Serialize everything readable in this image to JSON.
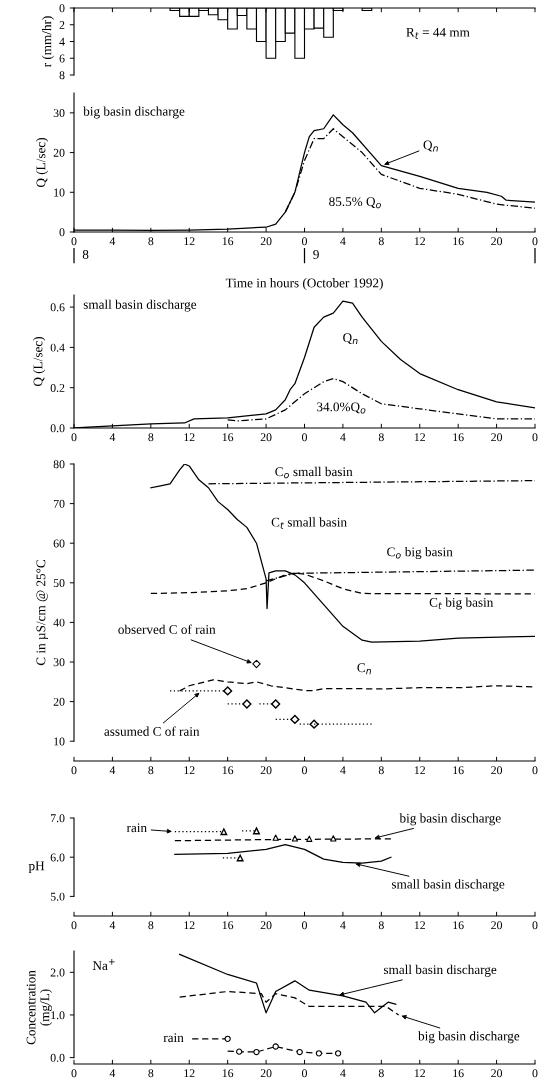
{
  "chart_data": [
    {
      "type": "bar",
      "ylabel": "r (mm/hr)",
      "xlim": [
        "1992-10-08T00:00",
        "1992-10-10T00:00"
      ],
      "ylim": [
        8,
        0
      ],
      "yticks": [
        0,
        2,
        4,
        6,
        8
      ],
      "tick_labels": "y",
      "xticks": [
        {
          "value": "1992-10-08T00:00",
          "label": null
        },
        {
          "value": "1992-10-08T04:00",
          "label": null
        },
        {
          "value": "1992-10-08T08:00",
          "label": null
        },
        {
          "value": "1992-10-08T12:00",
          "label": null
        },
        {
          "value": "1992-10-08T16:00",
          "label": null
        },
        {
          "value": "1992-10-08T20:00",
          "label": null
        },
        {
          "value": "1992-10-09T00:00",
          "label": null
        },
        {
          "value": "1992-10-09T04:00",
          "label": null
        },
        {
          "value": "1992-10-09T08:00",
          "label": null
        },
        {
          "value": "1992-10-09T12:00",
          "label": null
        },
        {
          "value": "1992-10-09T16:00",
          "label": null
        },
        {
          "value": "1992-10-09T20:00",
          "label": null
        },
        {
          "value": "1992-10-10T00:00",
          "label": null
        }
      ],
      "annotations": [
        "R$_{t}$ = 44 mm"
      ],
      "series": [
        {
          "color": "#ffffff",
          "x": [
            "1992-10-08T10:30",
            "1992-10-08T11:30",
            "1992-10-08T12:30",
            "1992-10-08T13:30",
            "1992-10-08T14:30",
            "1992-10-08T15:30",
            "1992-10-08T16:30",
            "1992-10-08T17:30",
            "1992-10-08T18:30",
            "1992-10-08T19:30",
            "1992-10-08T20:30",
            "1992-10-08T21:30",
            "1992-10-08T22:30",
            "1992-10-08T23:30",
            "1992-10-09T00:30",
            "1992-10-09T01:30",
            "1992-10-09T02:30",
            "1992-10-09T03:30",
            "1992-10-09T06:30"
          ],
          "values": [
            0.3,
            1,
            1,
            0.3,
            0.8,
            1.4,
            2.5,
            0.9,
            2.5,
            4,
            6,
            4,
            3,
            6,
            2.5,
            2.4,
            3.5,
            0.3,
            0.3
          ]
        }
      ]
    },
    {
      "type": "line",
      "ylabel": "Q (L/sec)",
      "xlabel": "Time in hours (October 1992)",
      "xlim": [
        "1992-10-08T00:00",
        "1992-10-10T00:00"
      ],
      "ylim": [
        0,
        35
      ],
      "yticks": [
        0,
        10,
        20,
        30
      ],
      "xticks": [
        {
          "value": "1992-10-08T00:00",
          "label": "0"
        },
        {
          "value": "1992-10-08T04:00",
          "label": "4"
        },
        {
          "value": "1992-10-08T08:00",
          "label": "8"
        },
        {
          "value": "1992-10-08T12:00",
          "label": "12"
        },
        {
          "value": "1992-10-08T16:00",
          "label": "16"
        },
        {
          "value": "1992-10-08T20:00",
          "label": "20"
        },
        {
          "value": "1992-10-09T00:00",
          "label": "0"
        },
        {
          "value": "1992-10-09T04:00",
          "label": "4"
        },
        {
          "value": "1992-10-09T08:00",
          "label": "8"
        },
        {
          "value": "1992-10-09T12:00",
          "label": "12"
        },
        {
          "value": "1992-10-09T16:00",
          "label": "16"
        },
        {
          "value": "1992-10-09T20:00",
          "label": "20"
        },
        {
          "value": "1992-10-10T00:00",
          "label": "0"
        }
      ],
      "annotations": [
        "big basin discharge",
        {
          "text": "Q$_{n}$",
          "x": "1992-10-09T08:00",
          "y": 16.7
        },
        "85.5% Q$_{o}$",
        "8",
        "9"
      ],
      "series": [
        {
          "color": "#000000",
          "line_style": "solid",
          "x": [
            "1992-10-08T00:00",
            "1992-10-08T04:00",
            "1992-10-08T08:00",
            "1992-10-08T12:00",
            "1992-10-08T16:00",
            "1992-10-08T18:00",
            "1992-10-08T20:00",
            "1992-10-08T21:00",
            "1992-10-08T22:00",
            "1992-10-08T23:00",
            "1992-10-08T23:30",
            "1992-10-09T00:00",
            "1992-10-09T00:30",
            "1992-10-09T01:00",
            "1992-10-09T02:00",
            "1992-10-09T03:00",
            "1992-10-09T04:00",
            "1992-10-09T05:00",
            "1992-10-09T08:00",
            "1992-10-09T12:00",
            "1992-10-09T14:00",
            "1992-10-09T16:00",
            "1992-10-09T19:00",
            "1992-10-09T20:30",
            "1992-10-09T21:00",
            "1992-10-10T00:00"
          ],
          "values": [
            0.5,
            0.5,
            0.4,
            0.5,
            0.7,
            1,
            1.2,
            2,
            5,
            10,
            15,
            20,
            24,
            25.5,
            26,
            29.5,
            27,
            25,
            16.7,
            14,
            12.5,
            11,
            10,
            9,
            8,
            7.5
          ]
        },
        {
          "color": "#000000",
          "line_style": "dashdot",
          "x": [
            "1992-10-08T22:00",
            "1992-10-08T23:00",
            "1992-10-09T00:00",
            "1992-10-09T01:00",
            "1992-10-09T02:00",
            "1992-10-09T03:00",
            "1992-10-09T04:00",
            "1992-10-09T06:00",
            "1992-10-09T08:00",
            "1992-10-09T12:00",
            "1992-10-09T16:00",
            "1992-10-09T20:00",
            "1992-10-10T00:00"
          ],
          "values": [
            5,
            10,
            18,
            23.5,
            23.5,
            26,
            24,
            20,
            14.5,
            11,
            9.5,
            7,
            6
          ]
        }
      ]
    },
    {
      "type": "line",
      "ylabel": "Q (L/sec)",
      "xlim": [
        "1992-10-08T00:00",
        "1992-10-10T00:00"
      ],
      "ylim": [
        0,
        0.66
      ],
      "yticks": [
        {
          "value": 0,
          "label": "0.0"
        },
        {
          "value": 0.2,
          "label": "0.2"
        },
        {
          "value": 0.4,
          "label": "0.4"
        },
        {
          "value": 0.6,
          "label": "0.6"
        }
      ],
      "xticks": [
        {
          "value": "1992-10-08T00:00",
          "label": "0"
        },
        {
          "value": "1992-10-08T04:00",
          "label": "4"
        },
        {
          "value": "1992-10-08T08:00",
          "label": "8"
        },
        {
          "value": "1992-10-08T12:00",
          "label": "12"
        },
        {
          "value": "1992-10-08T16:00",
          "label": "16"
        },
        {
          "value": "1992-10-08T20:00",
          "label": "20"
        },
        {
          "value": "1992-10-09T00:00",
          "label": "0"
        },
        {
          "value": "1992-10-09T04:00",
          "label": "4"
        },
        {
          "value": "1992-10-09T08:00",
          "label": "8"
        },
        {
          "value": "1992-10-09T12:00",
          "label": "12"
        },
        {
          "value": "1992-10-09T16:00",
          "label": "16"
        },
        {
          "value": "1992-10-09T20:00",
          "label": "20"
        },
        {
          "value": "1992-10-10T00:00",
          "label": "0"
        }
      ],
      "annotations": [
        "small basin discharge",
        "Q$_{n}$",
        "34.0%Q$_{o}$"
      ],
      "series": [
        {
          "color": "#000000",
          "line_style": "solid",
          "x": [
            "1992-10-08T00:00",
            "1992-10-08T04:00",
            "1992-10-08T08:00",
            "1992-10-08T11:30",
            "1992-10-08T12:30",
            "1992-10-08T16:00",
            "1992-10-08T19:00",
            "1992-10-08T20:00",
            "1992-10-08T21:00",
            "1992-10-08T22:00",
            "1992-10-08T22:30",
            "1992-10-08T23:00",
            "1992-10-09T00:00",
            "1992-10-09T01:00",
            "1992-10-09T02:00",
            "1992-10-09T03:00",
            "1992-10-09T03:30",
            "1992-10-09T04:00",
            "1992-10-09T05:00",
            "1992-10-09T06:00",
            "1992-10-09T08:00",
            "1992-10-09T10:00",
            "1992-10-09T12:00",
            "1992-10-09T16:00",
            "1992-10-09T20:00",
            "1992-10-10T00:00"
          ],
          "values": [
            0,
            0.01,
            0.02,
            0.025,
            0.045,
            0.05,
            0.065,
            0.07,
            0.09,
            0.14,
            0.19,
            0.22,
            0.35,
            0.5,
            0.55,
            0.57,
            0.6,
            0.63,
            0.62,
            0.55,
            0.43,
            0.34,
            0.27,
            0.19,
            0.13,
            0.1
          ]
        },
        {
          "color": "#000000",
          "line_style": "dashdot",
          "x": [
            "1992-10-08T16:00",
            "1992-10-08T17:00",
            "1992-10-08T20:00",
            "1992-10-08T22:00",
            "1992-10-09T00:00",
            "1992-10-09T02:00",
            "1992-10-09T03:00",
            "1992-10-09T04:00",
            "1992-10-09T06:00",
            "1992-10-09T08:00",
            "1992-10-09T12:00",
            "1992-10-09T16:00",
            "1992-10-09T20:00",
            "1992-10-10T00:00"
          ],
          "values": [
            0.04,
            0.035,
            0.045,
            0.09,
            0.17,
            0.23,
            0.245,
            0.23,
            0.17,
            0.12,
            0.095,
            0.07,
            0.045,
            0.045
          ]
        }
      ]
    },
    {
      "type": "line",
      "ylabel": "C in µS/cm @ 25°C",
      "xlim": [
        "1992-10-08T00:00",
        "1992-10-10T00:00"
      ],
      "ylim": [
        5,
        80
      ],
      "yticks": [
        10,
        20,
        30,
        40,
        50,
        60,
        70,
        80
      ],
      "xticks": [
        {
          "value": "1992-10-08T00:00",
          "label": "0"
        },
        {
          "value": "1992-10-08T04:00",
          "label": "4"
        },
        {
          "value": "1992-10-08T08:00",
          "label": "8"
        },
        {
          "value": "1992-10-08T12:00",
          "label": "12"
        },
        {
          "value": "1992-10-08T16:00",
          "label": "16"
        },
        {
          "value": "1992-10-08T20:00",
          "label": "20"
        },
        {
          "value": "1992-10-09T00:00",
          "label": "0"
        },
        {
          "value": "1992-10-09T04:00",
          "label": "4"
        },
        {
          "value": "1992-10-09T08:00",
          "label": "8"
        },
        {
          "value": "1992-10-09T12:00",
          "label": "12"
        },
        {
          "value": "1992-10-09T16:00",
          "label": "16"
        },
        {
          "value": "1992-10-09T20:00",
          "label": "20"
        },
        {
          "value": "1992-10-10T00:00",
          "label": "0"
        }
      ],
      "annotations": [
        "C$_{o}$ small basin",
        "C$_{t}$ small basin",
        "C$_{o}$ big basin",
        "C$_{t}$ big basin",
        "C$_{n}$",
        {
          "text": "observed C of rain",
          "x": "1992-10-08T18:48",
          "y": 29.5
        },
        {
          "text": "assumed C of rain",
          "x": "1992-10-08T13:18",
          "y": 22.7
        }
      ],
      "series": [
        {
          "color": "#000000",
          "line_style": "solid",
          "x": [
            "1992-10-08T08:00",
            "1992-10-08T09:00",
            "1992-10-08T10:00",
            "1992-10-08T11:00",
            "1992-10-08T11:30",
            "1992-10-08T12:00",
            "1992-10-08T13:00",
            "1992-10-08T14:00",
            "1992-10-08T15:00",
            "1992-10-08T16:00",
            "1992-10-08T17:00",
            "1992-10-08T18:00",
            "1992-10-08T19:00",
            "1992-10-08T20:00",
            "1992-10-08T20:06",
            "1992-10-08T20:18",
            "1992-10-08T21:00",
            "1992-10-08T22:00",
            "1992-10-08T23:00",
            "1992-10-09T00:00",
            "1992-10-09T02:00",
            "1992-10-09T04:00",
            "1992-10-09T06:00",
            "1992-10-09T07:00",
            "1992-10-09T12:00",
            "1992-10-09T16:00",
            "1992-10-10T00:00"
          ],
          "values": [
            74,
            74.5,
            75,
            78.5,
            80,
            79.5,
            76,
            74,
            70.5,
            68.5,
            66,
            64,
            60,
            51,
            43.5,
            52.5,
            53,
            53,
            52,
            50,
            44.5,
            39,
            35.5,
            35,
            35.3,
            36,
            36.5
          ]
        },
        {
          "color": "#000000",
          "line_style": "dashdot",
          "x": [
            "1992-10-08T14:00",
            "1992-10-10T00:00"
          ],
          "values": [
            75,
            75.8
          ]
        },
        {
          "color": "#000000",
          "line_style": "dashed",
          "x": [
            "1992-10-08T08:00",
            "1992-10-08T12:00",
            "1992-10-08T16:00",
            "1992-10-08T18:00",
            "1992-10-08T20:00",
            "1992-10-08T22:00",
            "1992-10-08T23:00",
            "1992-10-09T00:00",
            "1992-10-09T02:00",
            "1992-10-09T04:00",
            "1992-10-09T06:00",
            "1992-10-10T00:00"
          ],
          "values": [
            47.3,
            47.5,
            48,
            48.5,
            50,
            52,
            52.5,
            52.2,
            50.5,
            48.5,
            47.3,
            47.2
          ]
        },
        {
          "color": "#000000",
          "line_style": "dashdot",
          "x": [
            "1992-10-08T20:00",
            "1992-10-08T23:00",
            "1992-10-10T00:00"
          ],
          "values": [
            50.5,
            52.4,
            53.2
          ]
        },
        {
          "color": "#000000",
          "line_style": "dashed",
          "x": [
            "1992-10-08T11:00",
            "1992-10-08T12:00",
            "1992-10-08T14:30",
            "1992-10-08T16:00",
            "1992-10-08T18:00",
            "1992-10-08T19:00",
            "1992-10-08T20:30",
            "1992-10-08T22:00",
            "1992-10-09T00:00",
            "1992-10-09T01:00",
            "1992-10-09T02:00",
            "1992-10-09T04:00",
            "1992-10-09T08:00",
            "1992-10-09T12:00",
            "1992-10-09T16:00",
            "1992-10-09T20:00",
            "1992-10-10T00:00"
          ],
          "values": [
            22.7,
            24,
            25.5,
            25,
            24.5,
            25,
            24,
            23.5,
            22.8,
            22.8,
            23.3,
            23.3,
            23.2,
            23.5,
            23.5,
            24,
            23.7
          ]
        },
        {
          "type": "scatter",
          "color": "#000000",
          "marker": "diamond",
          "x": [
            "1992-10-08T19:00"
          ],
          "values": [
            29.5
          ]
        },
        {
          "color": "#000000",
          "line_style": "dotted",
          "marker": "diamond",
          "x": [
            "1992-10-08T10:00",
            "1992-10-08T16:00"
          ],
          "values": [
            22.7,
            22.7
          ]
        },
        {
          "color": "#000000",
          "line_style": "dotted",
          "marker": "diamond",
          "x": [
            "1992-10-08T16:00",
            "1992-10-08T18:00"
          ],
          "values": [
            19.4,
            19.4
          ]
        },
        {
          "color": "#000000",
          "line_style": "dotted",
          "marker": "diamond",
          "x": [
            "1992-10-08T19:18",
            "1992-10-08T21:00"
          ],
          "values": [
            19.4,
            19.4
          ]
        },
        {
          "color": "#000000",
          "line_style": "dotted",
          "marker": "diamond",
          "x": [
            "1992-10-08T21:00",
            "1992-10-08T23:00"
          ],
          "values": [
            15.5,
            15.5
          ]
        },
        {
          "color": "#000000",
          "line_style": "dotted",
          "marker": "diamond",
          "x": [
            "1992-10-08T23:30",
            "1992-10-09T01:00"
          ],
          "values": [
            14.3,
            14.3
          ]
        },
        {
          "color": "#000000",
          "line_style": "dotted",
          "x": [
            "1992-10-09T01:00",
            "1992-10-09T07:00"
          ],
          "values": [
            14.3,
            14.3
          ]
        }
      ]
    },
    {
      "type": "line",
      "ylabel": "pH",
      "xlim": [
        "1992-10-08T00:00",
        "1992-10-10T00:00"
      ],
      "ylim": [
        4.5,
        7.0
      ],
      "yticks": [
        {
          "value": 5,
          "label": "5.0"
        },
        {
          "value": 6,
          "label": "6.0"
        },
        {
          "value": 7,
          "label": "7.0"
        }
      ],
      "xticks": [
        {
          "value": "1992-10-08T00:00",
          "label": "0"
        },
        {
          "value": "1992-10-08T04:00",
          "label": "4"
        },
        {
          "value": "1992-10-08T08:00",
          "label": "8"
        },
        {
          "value": "1992-10-08T12:00",
          "label": "12"
        },
        {
          "value": "1992-10-08T16:00",
          "label": "16"
        },
        {
          "value": "1992-10-08T20:00",
          "label": "20"
        },
        {
          "value": "1992-10-09T00:00",
          "label": "0"
        },
        {
          "value": "1992-10-09T04:00",
          "label": "4"
        },
        {
          "value": "1992-10-09T08:00",
          "label": "8"
        },
        {
          "value": "1992-10-09T12:00",
          "label": "12"
        },
        {
          "value": "1992-10-09T16:00",
          "label": "16"
        },
        {
          "value": "1992-10-09T20:00",
          "label": "20"
        },
        {
          "value": "1992-10-10T00:00",
          "label": "0"
        }
      ],
      "annotations": [
        {
          "text": "rain",
          "x": "1992-10-08T10:30",
          "y": 6.65
        },
        {
          "text": "big basin discharge",
          "x": "1992-10-09T07:00",
          "y": 6.47
        },
        {
          "text": "small basin discharge",
          "x": "1992-10-09T05:00",
          "y": 5.85
        }
      ],
      "series": [
        {
          "color": "#000000",
          "line_style": "solid",
          "x": [
            "1992-10-08T10:30",
            "1992-10-08T16:00",
            "1992-10-08T20:00",
            "1992-10-08T22:00",
            "1992-10-09T00:00",
            "1992-10-09T02:00",
            "1992-10-09T04:00",
            "1992-10-09T06:00",
            "1992-10-09T08:00",
            "1992-10-09T09:00"
          ],
          "values": [
            6.07,
            6.1,
            6.2,
            6.32,
            6.2,
            5.95,
            5.87,
            5.85,
            5.9,
            6.0
          ]
        },
        {
          "color": "#000000",
          "line_style": "dashed",
          "x": [
            "1992-10-08T10:30",
            "1992-10-08T20:00",
            "1992-10-09T09:00"
          ],
          "values": [
            6.42,
            6.45,
            6.47
          ]
        },
        {
          "color": "#000000",
          "line_style": "dotted",
          "marker": "triangle",
          "x": [
            "1992-10-08T10:30",
            "1992-10-08T15:36"
          ],
          "values": [
            6.65,
            6.65
          ]
        },
        {
          "color": "#000000",
          "line_style": "dotted",
          "marker": "triangle",
          "x": [
            "1992-10-08T17:30",
            "1992-10-08T19:00"
          ],
          "values": [
            6.67,
            6.67
          ]
        },
        {
          "color": "#000000",
          "line_style": "dotted",
          "marker": "triangle",
          "x": [
            "1992-10-08T15:30",
            "1992-10-08T17:18"
          ],
          "values": [
            5.98,
            5.98
          ]
        },
        {
          "type": "scatter",
          "color": "#000000",
          "marker": "triangle",
          "x": [
            "1992-10-08T21:00",
            "1992-10-08T23:00",
            "1992-10-09T00:30",
            "1992-10-09T03:00"
          ],
          "values": [
            6.5,
            6.48,
            6.47,
            6.48
          ]
        }
      ]
    },
    {
      "type": "line",
      "ylabel": "Concentration\n(mg/L)",
      "xlim": [
        "1992-10-08T00:00",
        "1992-10-10T00:00"
      ],
      "ylim": [
        -0.15,
        2.5
      ],
      "yticks": [
        {
          "value": 0,
          "label": "0.0"
        },
        {
          "value": 1,
          "label": "1.0"
        },
        {
          "value": 2,
          "label": "2.0"
        }
      ],
      "xticks": [
        {
          "value": "1992-10-08T00:00",
          "label": "0"
        },
        {
          "value": "1992-10-08T04:00",
          "label": "4"
        },
        {
          "value": "1992-10-08T08:00",
          "label": "8"
        },
        {
          "value": "1992-10-08T12:00",
          "label": "12"
        },
        {
          "value": "1992-10-08T16:00",
          "label": "16"
        },
        {
          "value": "1992-10-08T20:00",
          "label": "20"
        },
        {
          "value": "1992-10-09T00:00",
          "label": "0"
        },
        {
          "value": "1992-10-09T04:00",
          "label": "4"
        },
        {
          "value": "1992-10-09T08:00",
          "label": "8"
        },
        {
          "value": "1992-10-09T12:00",
          "label": "12"
        },
        {
          "value": "1992-10-09T16:00",
          "label": "16"
        },
        {
          "value": "1992-10-09T20:00",
          "label": "20"
        },
        {
          "value": "1992-10-10T00:00",
          "label": "0"
        }
      ],
      "annotations": [
        "Na$^{+}$",
        {
          "text": "rain",
          "x": "1992-10-08T12:18",
          "y": 0.44
        },
        {
          "text": "small basin discharge",
          "x": "1992-10-09T03:18",
          "y": 1.45
        },
        {
          "text": "big basin discharge",
          "x": "1992-10-09T09:48",
          "y": 1.0
        }
      ],
      "series": [
        {
          "color": "#000000",
          "line_style": "solid",
          "x": [
            "1992-10-08T11:00",
            "1992-10-08T16:00",
            "1992-10-08T19:00",
            "1992-10-08T20:00",
            "1992-10-08T21:00",
            "1992-10-08T23:00",
            "1992-10-09T00:30",
            "1992-10-09T04:00",
            "1992-10-09T06:24",
            "1992-10-09T07:18",
            "1992-10-09T08:42",
            "1992-10-09T09:30"
          ],
          "values": [
            2.42,
            1.95,
            1.75,
            1.05,
            1.55,
            1.8,
            1.58,
            1.45,
            1.3,
            1.05,
            1.3,
            1.25
          ]
        },
        {
          "color": "#000000",
          "line_style": "dashed",
          "x": [
            "1992-10-08T11:00",
            "1992-10-08T16:00",
            "1992-10-08T19:30",
            "1992-10-08T20:00",
            "1992-10-08T21:00",
            "1992-10-08T23:00",
            "1992-10-09T00:30",
            "1992-10-09T03:00",
            "1992-10-09T07:00",
            "1992-10-09T08:30",
            "1992-10-09T09:48"
          ],
          "values": [
            1.42,
            1.55,
            1.5,
            1.3,
            1.5,
            1.4,
            1.2,
            1.2,
            1.2,
            1.2,
            1.0
          ]
        },
        {
          "color": "#000000",
          "line_style": "dashed",
          "x": [
            "1992-10-08T12:18",
            "1992-10-08T16:00"
          ],
          "values": [
            0.44,
            0.44
          ]
        },
        {
          "color": "#000000",
          "line_style": "dashed",
          "x": [
            "1992-10-08T16:00",
            "1992-10-08T17:12",
            "1992-10-08T19:00",
            "1992-10-08T21:00",
            "1992-10-08T23:30",
            "1992-10-09T01:30",
            "1992-10-09T03:30"
          ],
          "values": [
            0.15,
            0.14,
            0.13,
            0.26,
            0.13,
            0.1,
            0.1
          ]
        },
        {
          "type": "scatter",
          "color": "#000000",
          "marker": "circle",
          "x": [
            "1992-10-08T16:00",
            "1992-10-08T17:12",
            "1992-10-08T19:00",
            "1992-10-08T21:00",
            "1992-10-08T23:30",
            "1992-10-09T01:30",
            "1992-10-09T03:30"
          ],
          "values": [
            0.44,
            0.14,
            0.13,
            0.26,
            0.13,
            0.1,
            0.1
          ]
        }
      ]
    }
  ]
}
